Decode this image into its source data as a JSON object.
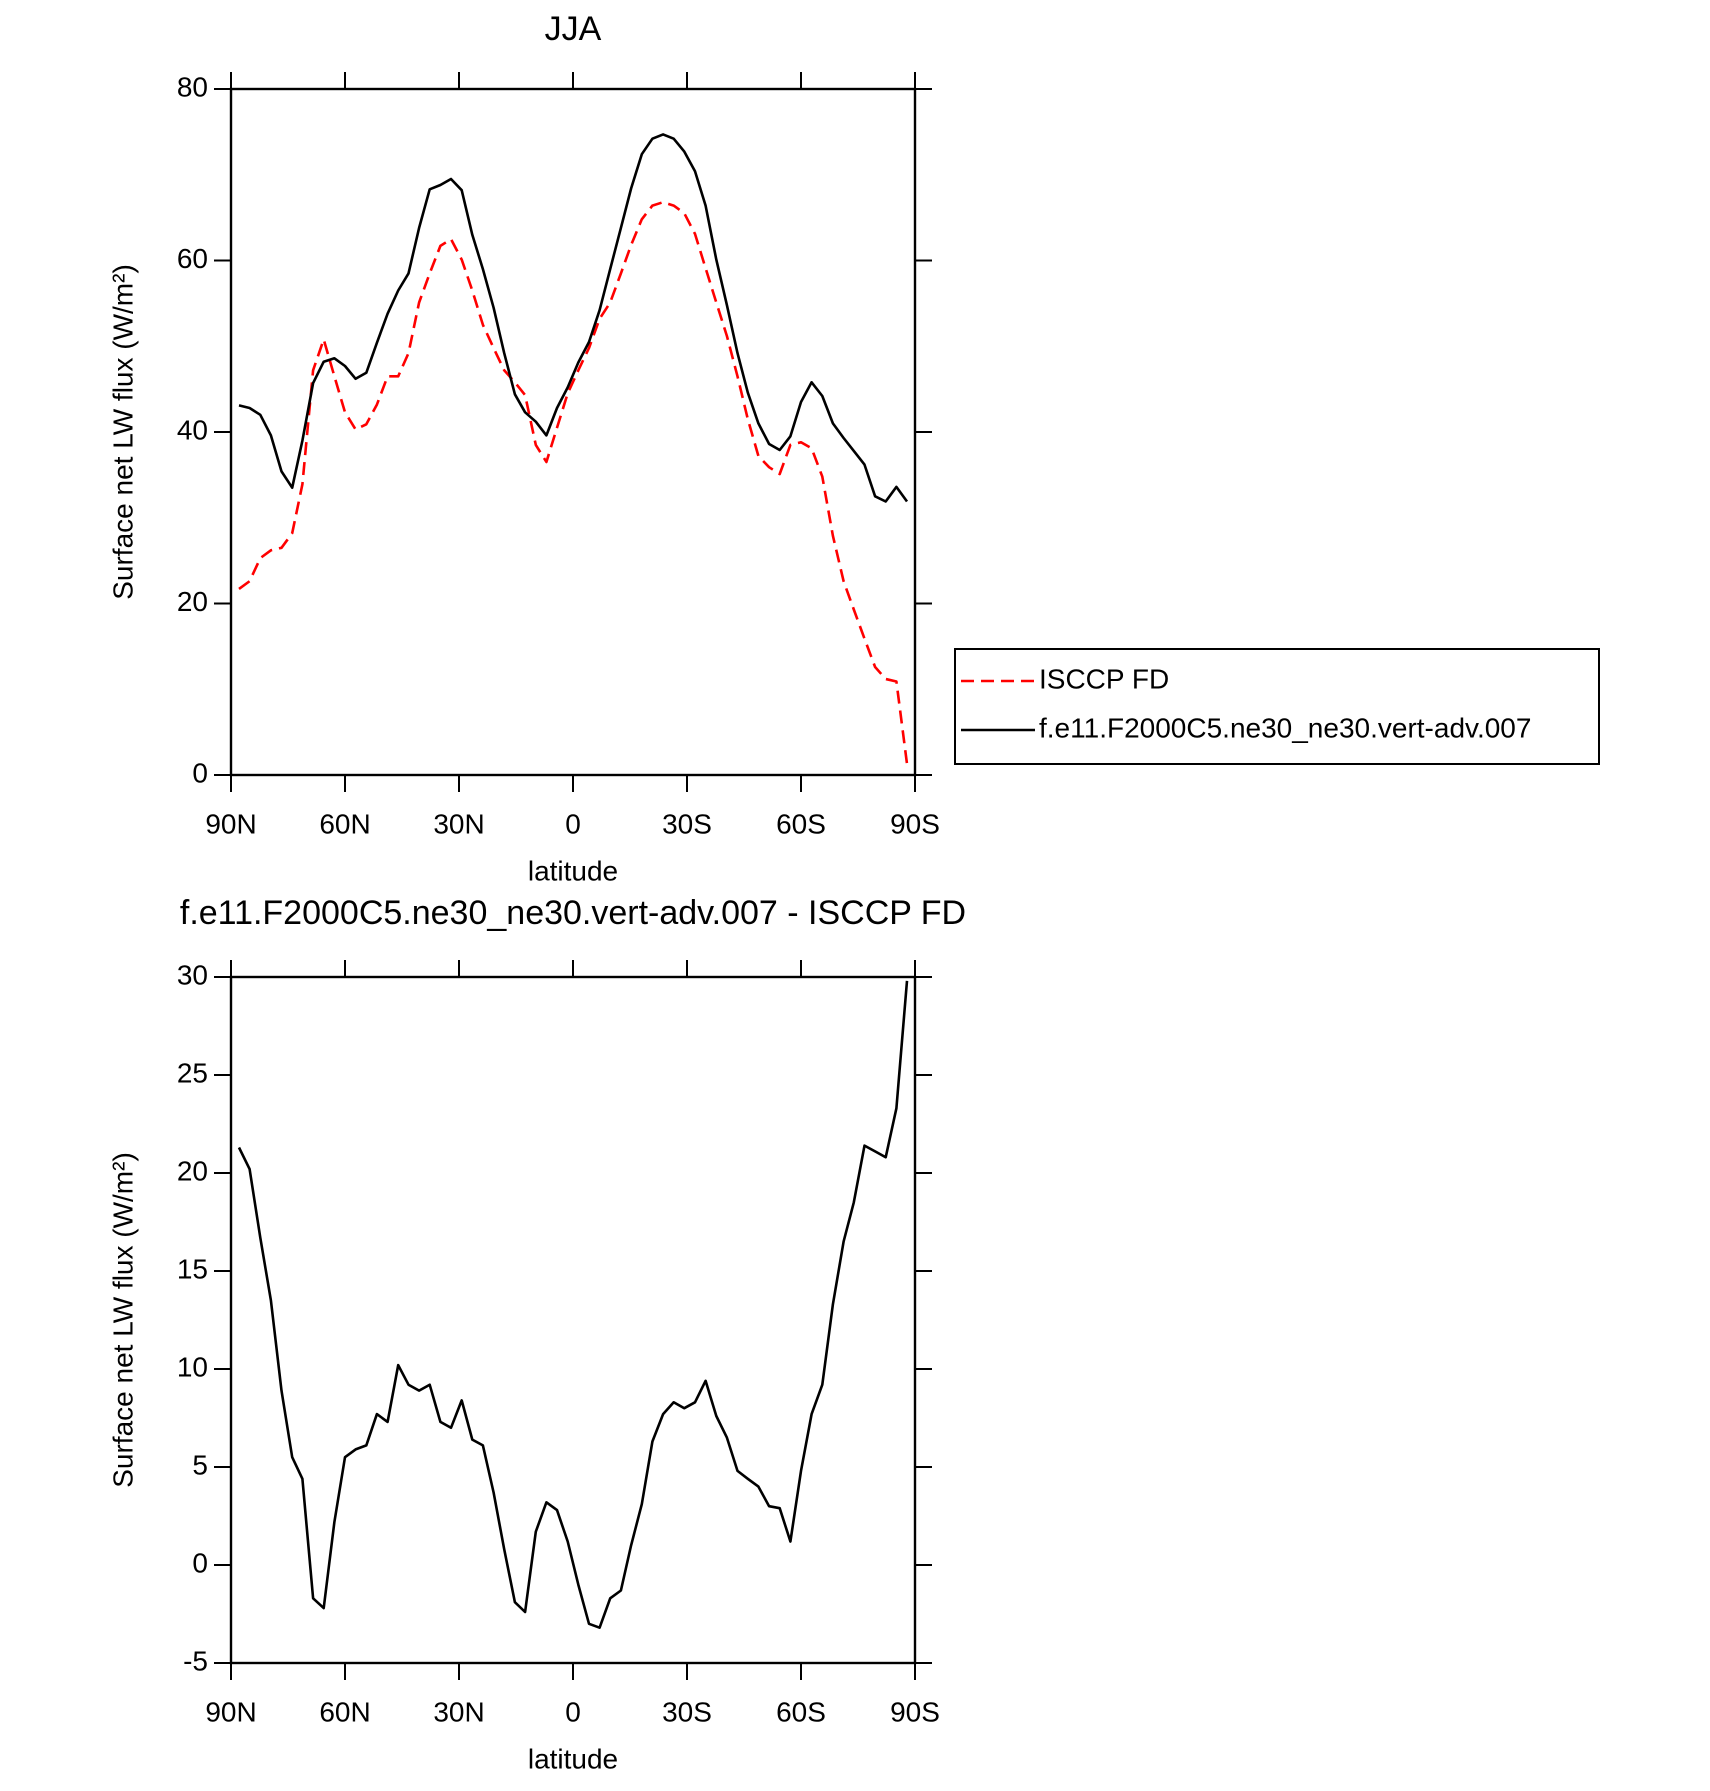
{
  "chart_data": [
    {
      "type": "line",
      "title": "JJA",
      "xlabel": "latitude",
      "ylabel": "Surface net LW flux (W/m²)",
      "x": [
        87.9,
        85.1,
        82.3,
        79.5,
        76.7,
        73.9,
        71.2,
        68.4,
        65.6,
        62.8,
        60.0,
        57.2,
        54.4,
        51.6,
        48.8,
        46.0,
        43.3,
        40.5,
        37.7,
        34.9,
        32.1,
        29.3,
        26.5,
        23.7,
        20.9,
        18.1,
        15.3,
        12.6,
        9.8,
        7.0,
        4.2,
        1.4,
        -1.4,
        -4.2,
        -7.0,
        -9.8,
        -12.6,
        -15.3,
        -18.1,
        -20.9,
        -23.7,
        -26.5,
        -29.3,
        -32.1,
        -34.9,
        -37.7,
        -40.5,
        -43.3,
        -46.0,
        -48.8,
        -51.6,
        -54.4,
        -57.2,
        -60.0,
        -62.8,
        -65.6,
        -68.4,
        -71.2,
        -73.9,
        -76.7,
        -79.5,
        -82.3,
        -85.1,
        -87.9
      ],
      "series": [
        {
          "name": "ISCCP FD",
          "color": "#ff0000",
          "dashed": true,
          "values": [
            21.7,
            22.6,
            25.3,
            26.2,
            26.5,
            28.2,
            33.9,
            47.2,
            50.8,
            46.5,
            42.3,
            40.3,
            40.9,
            43.2,
            46.5,
            46.5,
            49.2,
            55.1,
            58.5,
            61.7,
            62.5,
            60.1,
            56.5,
            52.5,
            49.8,
            47.2,
            45.8,
            44.3,
            38.5,
            36.5,
            40.5,
            44.5,
            47.2,
            49.8,
            53.2,
            55.1,
            58.5,
            61.8,
            64.8,
            66.4,
            66.8,
            66.4,
            65.5,
            63.1,
            59.1,
            55.1,
            51.2,
            46.5,
            41.5,
            37.2,
            35.9,
            35.1,
            38.5,
            38.8,
            38.1,
            34.8,
            27.9,
            22.6,
            19.3,
            15.9,
            12.6,
            11.2,
            10.9,
            1.3
          ]
        },
        {
          "name": "f.e11.F2000C5.ne30_ne30.vert-adv.007",
          "color": "#000000",
          "dashed": false,
          "values": [
            43.1,
            42.8,
            42.0,
            39.6,
            35.4,
            33.5,
            39.0,
            45.7,
            48.2,
            48.6,
            47.7,
            46.2,
            46.9,
            50.4,
            53.8,
            56.5,
            58.5,
            63.8,
            68.3,
            68.8,
            69.5,
            68.2,
            63.0,
            59.0,
            54.5,
            49.2,
            44.4,
            42.3,
            41.2,
            39.6,
            42.8,
            45.2,
            48.1,
            50.5,
            54.2,
            59.0,
            63.8,
            68.4,
            72.4,
            74.2,
            74.7,
            74.2,
            72.7,
            70.4,
            66.4,
            60.1,
            54.8,
            49.2,
            44.6,
            41.0,
            38.6,
            37.9,
            39.5,
            43.5,
            45.8,
            44.2,
            41.0,
            39.3,
            37.8,
            36.2,
            32.5,
            31.9,
            33.6,
            31.9
          ]
        }
      ],
      "xlim": [
        90,
        -90
      ],
      "xticks": [
        {
          "value": 90,
          "label": "90N"
        },
        {
          "value": 60,
          "label": "60N"
        },
        {
          "value": 30,
          "label": "30N"
        },
        0,
        {
          "value": -30,
          "label": "30S"
        },
        {
          "value": -60,
          "label": "60S"
        },
        {
          "value": -90,
          "label": "90S"
        }
      ],
      "ylim": [
        0,
        80
      ],
      "yticks": [
        0,
        20,
        40,
        60,
        80
      ],
      "legend": "right"
    },
    {
      "type": "line",
      "title": "f.e11.F2000C5.ne30_ne30.vert-adv.007 - ISCCP FD",
      "xlabel": "latitude",
      "ylabel": "Surface net LW flux (W/m²)",
      "x": [
        87.9,
        85.1,
        82.3,
        79.5,
        76.7,
        73.9,
        71.2,
        68.4,
        65.6,
        62.8,
        60.0,
        57.2,
        54.4,
        51.6,
        48.8,
        46.0,
        43.3,
        40.5,
        37.7,
        34.9,
        32.1,
        29.3,
        26.5,
        23.7,
        20.9,
        18.1,
        15.3,
        12.6,
        9.8,
        7.0,
        4.2,
        1.4,
        -1.4,
        -4.2,
        -7.0,
        -9.8,
        -12.6,
        -15.3,
        -18.1,
        -20.9,
        -23.7,
        -26.5,
        -29.3,
        -32.1,
        -34.9,
        -37.7,
        -40.5,
        -43.3,
        -46.0,
        -48.8,
        -51.6,
        -54.4,
        -57.2,
        -60.0,
        -62.8,
        -65.6,
        -68.4,
        -71.2,
        -73.9,
        -76.7,
        -79.5,
        -82.3,
        -85.1,
        -87.9
      ],
      "series": [
        {
          "color": "#000000",
          "dashed": false,
          "values": [
            21.3,
            20.2,
            16.7,
            13.5,
            8.9,
            5.5,
            4.4,
            -1.7,
            -2.2,
            2.2,
            5.5,
            5.9,
            6.1,
            7.7,
            7.3,
            10.2,
            9.2,
            8.9,
            9.2,
            7.3,
            7.0,
            8.4,
            6.4,
            6.1,
            3.7,
            0.8,
            -1.9,
            -2.4,
            1.7,
            3.2,
            2.8,
            1.2,
            -1.0,
            -3.0,
            -3.2,
            -1.7,
            -1.3,
            1.0,
            3.1,
            6.3,
            7.7,
            8.3,
            8.0,
            8.3,
            9.4,
            7.6,
            6.5,
            4.8,
            4.4,
            4.0,
            3.0,
            2.9,
            1.2,
            4.8,
            7.7,
            9.2,
            13.3,
            16.5,
            18.5,
            21.4,
            21.1,
            20.8,
            23.3,
            29.8
          ]
        }
      ],
      "xlim": [
        90,
        -90
      ],
      "xticks": [
        {
          "value": 90,
          "label": "90N"
        },
        {
          "value": 60,
          "label": "60N"
        },
        {
          "value": 30,
          "label": "30N"
        },
        0,
        {
          "value": -30,
          "label": "30S"
        },
        {
          "value": -60,
          "label": "60S"
        },
        {
          "value": -90,
          "label": "90S"
        }
      ],
      "ylim": [
        -5,
        30
      ],
      "yticks": [
        -5,
        0,
        5,
        10,
        15,
        20,
        25,
        30
      ]
    }
  ]
}
